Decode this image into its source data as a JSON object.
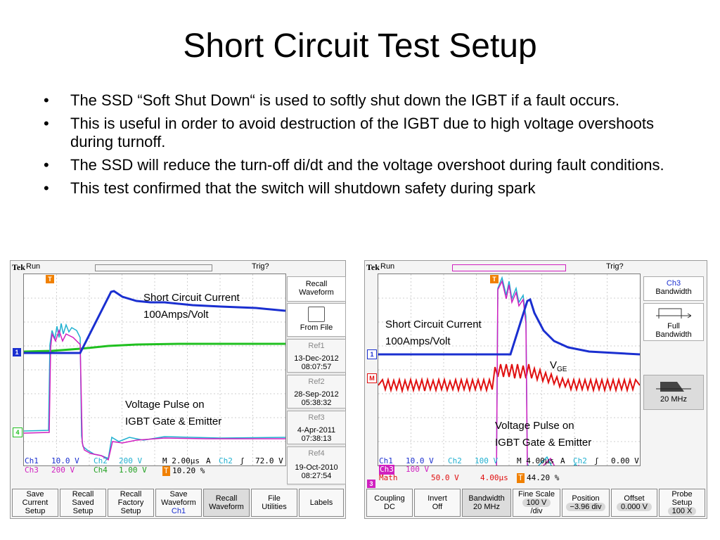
{
  "slide": {
    "title": "Short Circuit Test Setup",
    "bullets": [
      "The SSD “Soft Shut Down“ is used to softly shut down the IGBT if a fault occurs.",
      "This is useful in order to avoid destruction of the IGBT due to high voltage overshoots during turnoff.",
      "The SSD will reduce the turn-off di/dt and the voltage overshoot during fault conditions.",
      "This test confirmed that the switch will shutdown safety during spark"
    ],
    "bullet_glyph": "•"
  },
  "scope_left": {
    "brand": "Tek",
    "run": "Run",
    "trig": "Trig?",
    "annotations": {
      "current_line1": "Short Circuit Current",
      "current_line2": "100Amps/Volt",
      "pulse_line1": "Voltage Pulse on",
      "pulse_line2": "IGBT Gate & Emitter"
    },
    "markers": {
      "ch1": "1",
      "ch4": "4",
      "trig": "T"
    },
    "readouts": {
      "ch1": "Ch1",
      "ch1_val": "10.0 V",
      "ch2": "Ch2",
      "ch2_val": "200 V",
      "ch3": "Ch3",
      "ch3_val": "200 V",
      "ch4": "Ch4",
      "ch4_val": "1.00 V",
      "timebase": "M 2.00μs",
      "mode": "A",
      "trig_ch": "Ch2",
      "slope": "ʃ",
      "trig_level": "72.0 V",
      "pos": "10.20 %"
    },
    "side_menu": {
      "header1": "Recall",
      "header2": "Waveform",
      "from_file": "From File",
      "refs": [
        {
          "name": "Ref1",
          "date": "13-Dec-2012",
          "time": "08:07:57"
        },
        {
          "name": "Ref2",
          "date": "28-Sep-2012",
          "time": "05:38:32"
        },
        {
          "name": "Ref3",
          "date": "4-Apr-2011",
          "time": "07:38:13"
        },
        {
          "name": "Ref4",
          "date": "19-Oct-2010",
          "time": "08:27:54"
        }
      ]
    },
    "softkeys": [
      {
        "l1": "Save",
        "l2": "Current",
        "l3": "Setup"
      },
      {
        "l1": "Recall",
        "l2": "Saved",
        "l3": "Setup"
      },
      {
        "l1": "Recall",
        "l2": "Factory",
        "l3": "Setup"
      },
      {
        "l1": "Save",
        "l2": "Waveform",
        "l3": "Ch1"
      },
      {
        "l1": "Recall",
        "l2": "Waveform",
        "l3": ""
      },
      {
        "l1": "File",
        "l2": "Utilities",
        "l3": ""
      },
      {
        "l1": "Labels",
        "l2": "",
        "l3": ""
      }
    ]
  },
  "scope_right": {
    "brand": "Tek",
    "run": "Run",
    "trig": "Trig?",
    "annotations": {
      "current_line1": "Short Circuit Current",
      "current_line2": "100Amps/Volt",
      "vge_main": "V",
      "vge_sub": "GE",
      "pulse_line1": "Voltage Pulse on",
      "pulse_line2": "IGBT Gate & Emitter"
    },
    "markers": {
      "ch1": "1",
      "math": "M",
      "ch3": "3",
      "trig": "T"
    },
    "readouts": {
      "ch1": "Ch1",
      "ch1_val": "10.0 V",
      "ch2": "Ch2",
      "ch2_val": "100 V",
      "ch3": "Ch3",
      "ch3_val": "100 V",
      "math": "Math",
      "math_val": "50.0 V",
      "math_time": "4.00μs",
      "timebase": "M 4.00μs",
      "mode": "A",
      "trig_ch": "Ch2",
      "slope": "ʃ",
      "trig_level": "0.00 V",
      "pos": "44.20 %"
    },
    "side_menu": {
      "header1": "Ch3",
      "header2": "Bandwidth",
      "full1": "Full",
      "full2": "Bandwidth",
      "mhz": "20 MHz"
    },
    "softkeys": [
      {
        "l1": "Coupling",
        "l2": "DC",
        "l3": ""
      },
      {
        "l1": "Invert",
        "l2": "Off",
        "l3": ""
      },
      {
        "l1": "Bandwidth",
        "l2": "20 MHz",
        "l3": ""
      },
      {
        "l1": "Fine Scale",
        "l2": "100 V",
        "l3": "/div"
      },
      {
        "l1": "Position",
        "l2": "−3.96 div",
        "l3": ""
      },
      {
        "l1": "Offset",
        "l2": "0.000 V",
        "l3": ""
      },
      {
        "l1": "Probe",
        "l2": "Setup",
        "l3": "100 X"
      }
    ]
  },
  "colors": {
    "ch1": "#1a2fd0",
    "ch2": "#20b0d0",
    "ch3": "#d020c0",
    "ch4": "#20c020",
    "math": "#e01010"
  }
}
